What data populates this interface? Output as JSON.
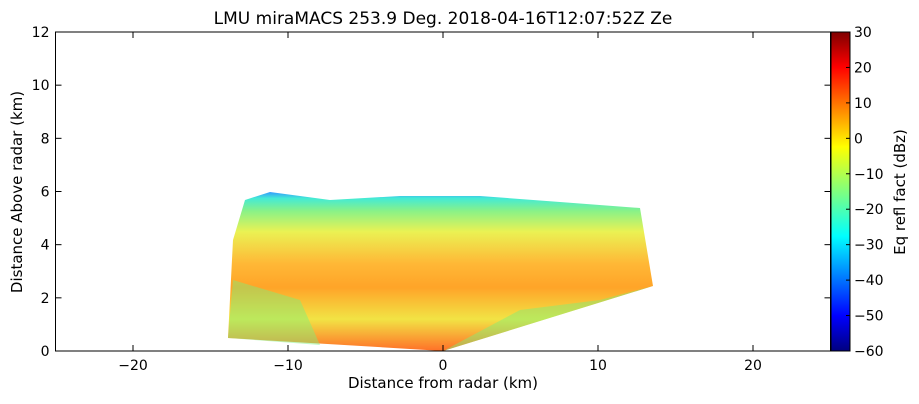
{
  "chart_data": {
    "type": "heatmap",
    "title": "LMU miraMACS 253.9 Deg. 2018-04-16T12:07:52Z  Ze",
    "xlabel": "Distance from radar (km)",
    "ylabel": "Distance Above radar  (km)",
    "xlim": [
      -25,
      25
    ],
    "xticks": [
      {
        "value": -20,
        "label": "−20"
      },
      {
        "value": -10,
        "label": "−10"
      },
      0,
      10,
      20
    ],
    "ylim": [
      0,
      12
    ],
    "yticks": [
      0,
      2,
      4,
      6,
      8,
      10,
      12
    ],
    "colorbar": {
      "label": "Eq refl fact (dBz)",
      "lim": [
        -60,
        30
      ],
      "ticks": [
        {
          "value": -60,
          "label": "−60"
        },
        {
          "value": -50,
          "label": "−50"
        },
        {
          "value": -40,
          "label": "−40"
        },
        {
          "value": -30,
          "label": "−30"
        },
        {
          "value": -20,
          "label": "−20"
        },
        {
          "value": -10,
          "label": "−10"
        },
        0,
        10,
        20,
        30
      ]
    }
  }
}
